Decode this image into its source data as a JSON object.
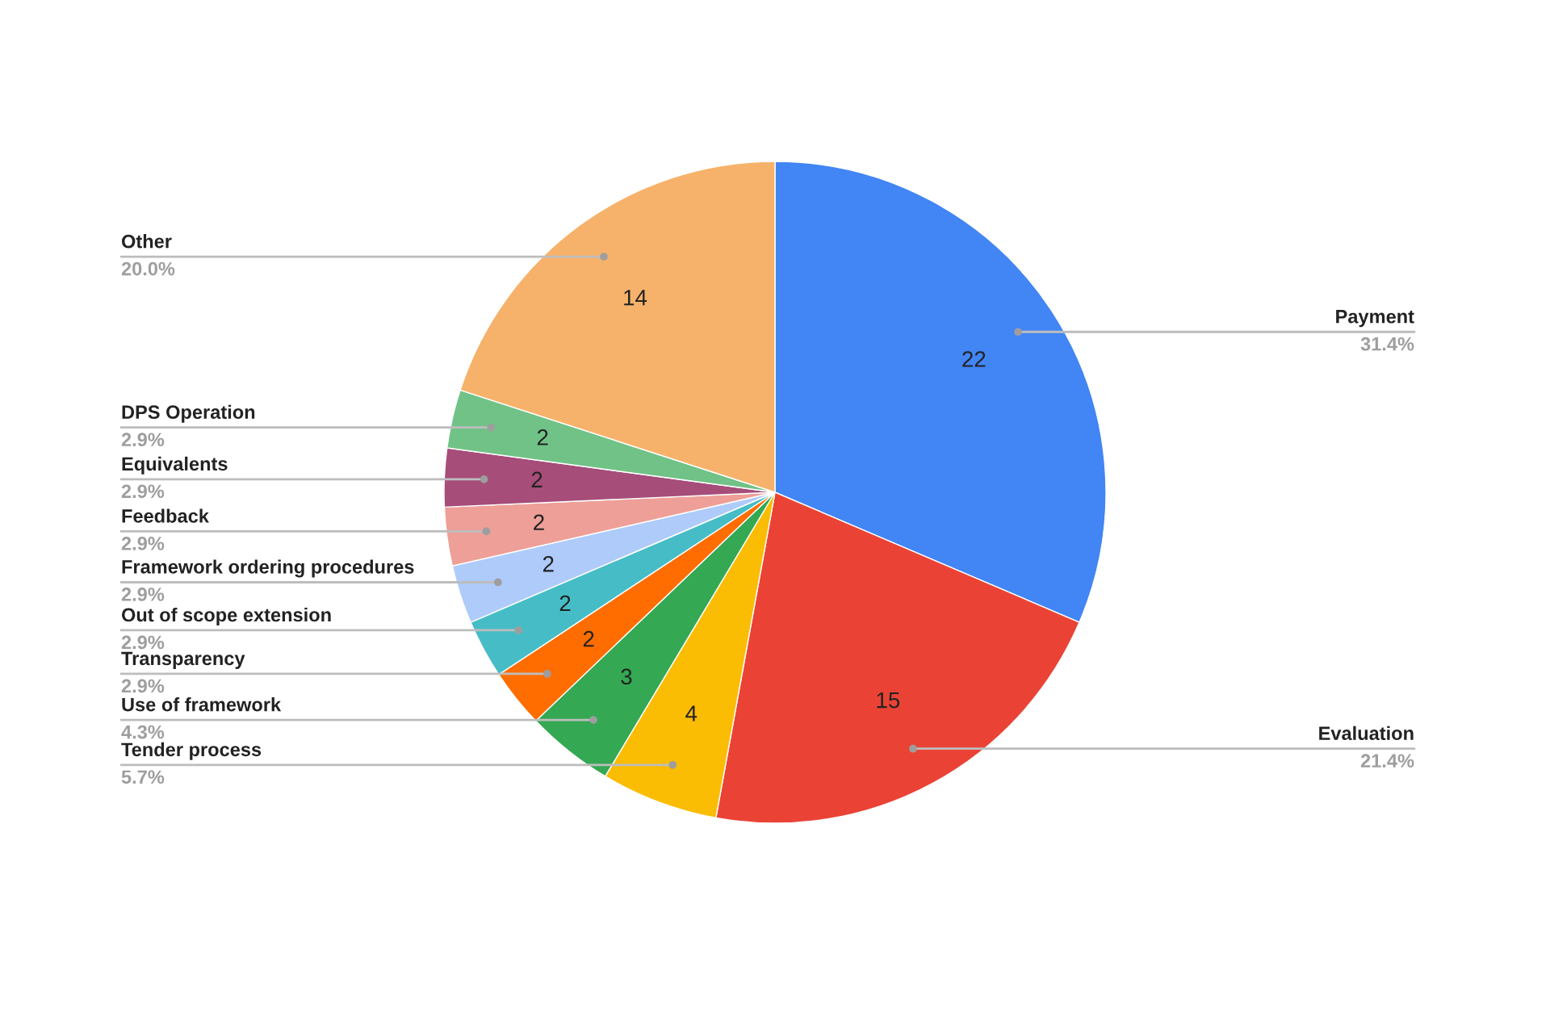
{
  "chart_data": {
    "type": "pie",
    "categories": [
      "Payment",
      "Evaluation",
      "Tender process",
      "Use of framework",
      "Transparency",
      "Out of scope extension",
      "Framework ordering procedures",
      "Feedback",
      "Equivalents",
      "DPS Operation",
      "Other"
    ],
    "values": [
      22,
      15,
      4,
      3,
      2,
      2,
      2,
      2,
      2,
      2,
      14
    ],
    "colors": [
      "#4285f4",
      "#ea4335",
      "#fbbc04",
      "#34a853",
      "#ff6d01",
      "#46bdc6",
      "#aecbfa",
      "#ee9f98",
      "#a64d79",
      "#71c287",
      "#f6b26b"
    ],
    "annotations": [
      "31.4%",
      "21.4%",
      "5.7%",
      "4.3%",
      "2.9%",
      "2.9%",
      "2.9%",
      "2.9%",
      "2.9%",
      "2.9%",
      "20.0%"
    ],
    "data_labels": true,
    "legend": false
  }
}
